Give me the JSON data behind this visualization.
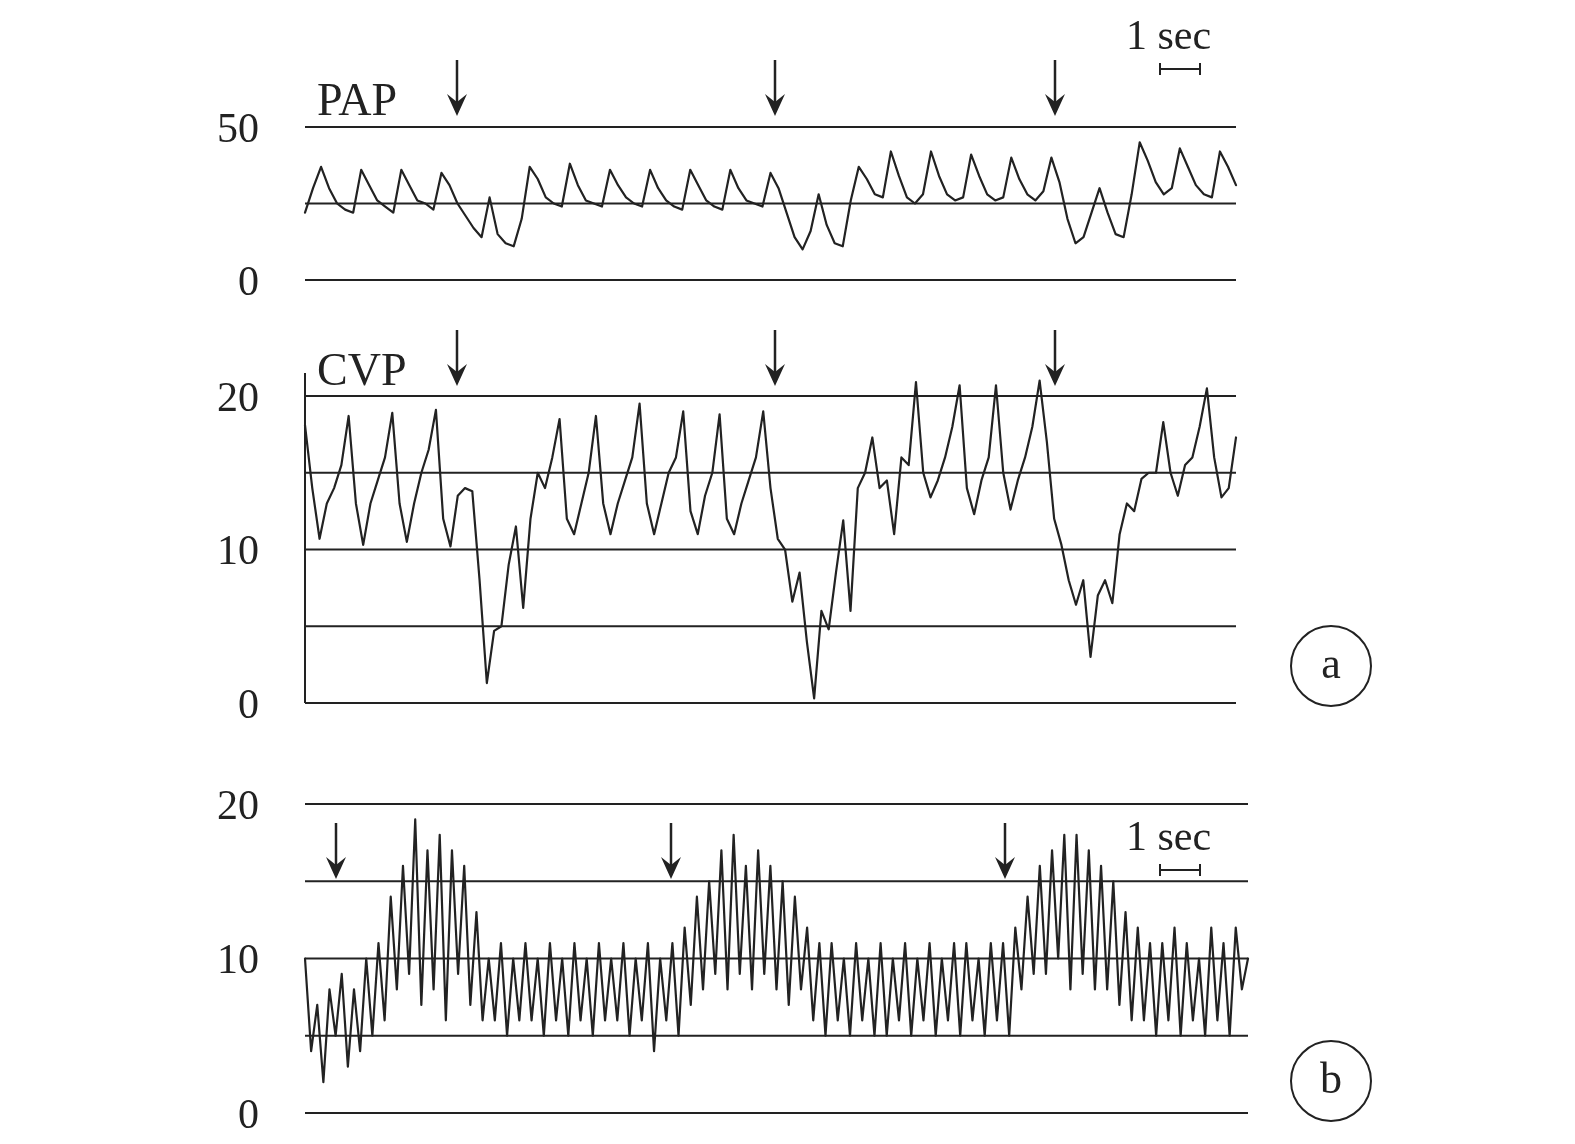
{
  "chart_data": [
    {
      "type": "line",
      "ylim": [
        0,
        50
      ],
      "yticks": [
        0,
        {
          "value": 25,
          "label": null
        },
        50
      ],
      "grid": "y",
      "tick_labels": "y",
      "annotations": [
        "1 sec"
      ],
      "categories": [
        null,
        null,
        null,
        null,
        null,
        null,
        null,
        null,
        null,
        null,
        null,
        null,
        null,
        null,
        null,
        null,
        null,
        null,
        null,
        null,
        null,
        null,
        null,
        null,
        null,
        null,
        null,
        null,
        null,
        null,
        null,
        null,
        null,
        null,
        null,
        null,
        null,
        null,
        null,
        null,
        null,
        null,
        null,
        null,
        null,
        null,
        null,
        null,
        null,
        null,
        null,
        null,
        null,
        null,
        null,
        null,
        null,
        null,
        null,
        null,
        null,
        null,
        null,
        null,
        null,
        null,
        null,
        null,
        null,
        null,
        null,
        null,
        null,
        null,
        null,
        null,
        null,
        null,
        null,
        null,
        null,
        null,
        null,
        null,
        null,
        null,
        null,
        null,
        null,
        null,
        null,
        null,
        null,
        null,
        null,
        null,
        null,
        null,
        null,
        null,
        null,
        null,
        null,
        null,
        null,
        null,
        null,
        null,
        null,
        null,
        null,
        null,
        null,
        null,
        null,
        null,
        null
      ],
      "series": [
        {
          "name": "PAP",
          "color": "#222222",
          "values": [
            22,
            30,
            37,
            30,
            25,
            23,
            22,
            36,
            31,
            26,
            24,
            22,
            36,
            31,
            26,
            25,
            23,
            35,
            31,
            25,
            21,
            17,
            14,
            27,
            15,
            12,
            11,
            20,
            37,
            33,
            27,
            25,
            24,
            38,
            31,
            26,
            25,
            24,
            36,
            31,
            27,
            25,
            24,
            36,
            30,
            26,
            24,
            23,
            36,
            31,
            26,
            24,
            23,
            36,
            30,
            26,
            25,
            24,
            35,
            30,
            22,
            14,
            10,
            16,
            28,
            18,
            12,
            11,
            26,
            37,
            33,
            28,
            27,
            42,
            34,
            27,
            25,
            28,
            42,
            34,
            28,
            26,
            27,
            41,
            34,
            28,
            26,
            27,
            40,
            33,
            28,
            26,
            29,
            40,
            32,
            20,
            12,
            14,
            22,
            30,
            22,
            15,
            14,
            28,
            45,
            39,
            32,
            28,
            30,
            43,
            37,
            31,
            28,
            27,
            42,
            37,
            31
          ]
        }
      ]
    },
    {
      "type": "line",
      "ylim": [
        0,
        21.5
      ],
      "yticks": [
        0,
        {
          "value": 5,
          "label": null
        },
        10,
        {
          "value": 15,
          "label": null
        },
        20
      ],
      "grid": "y",
      "tick_labels": "y",
      "annotations": [
        "a"
      ],
      "categories": [
        null,
        null,
        null,
        null,
        null,
        null,
        null,
        null,
        null,
        null,
        null,
        null,
        null,
        null,
        null,
        null,
        null,
        null,
        null,
        null,
        null,
        null,
        null,
        null,
        null,
        null,
        null,
        null,
        null,
        null,
        null,
        null,
        null,
        null,
        null,
        null,
        null,
        null,
        null,
        null,
        null,
        null,
        null,
        null,
        null,
        null,
        null,
        null,
        null,
        null,
        null,
        null,
        null,
        null,
        null,
        null,
        null,
        null,
        null,
        null,
        null,
        null,
        null,
        null,
        null,
        null,
        null,
        null,
        null,
        null,
        null,
        null,
        null,
        null,
        null,
        null,
        null,
        null,
        null,
        null,
        null,
        null,
        null,
        null,
        null,
        null,
        null,
        null,
        null,
        null,
        null,
        null,
        null,
        null,
        null,
        null,
        null,
        null,
        null,
        null,
        null,
        null,
        null,
        null,
        null,
        null,
        null,
        null,
        null,
        null,
        null,
        null,
        null,
        null,
        null,
        null,
        null,
        null,
        null,
        null,
        null,
        null,
        null,
        null,
        null,
        null,
        null,
        null,
        null
      ],
      "series": [
        {
          "name": "CVP",
          "color": "#222222",
          "values": [
            18.1,
            14,
            10.7,
            13,
            14,
            15.5,
            18.7,
            13,
            10.3,
            13,
            14.5,
            16,
            18.9,
            13,
            10.5,
            13,
            15,
            16.5,
            19.1,
            12,
            10.2,
            13.5,
            14,
            13.8,
            8,
            1.3,
            4.7,
            5,
            9,
            11.5,
            6.2,
            12,
            15,
            14,
            16,
            18.5,
            12,
            11,
            13,
            15,
            18.7,
            13,
            11,
            13,
            14.5,
            16,
            19.5,
            13,
            11,
            13,
            15,
            16,
            19,
            12.5,
            11,
            13.5,
            15,
            18.8,
            12,
            11,
            13,
            14.5,
            16,
            19,
            14,
            10.7,
            10,
            6.6,
            8.5,
            4,
            0.3,
            6,
            4.8,
            8.5,
            11.9,
            6,
            14,
            15,
            17.3,
            14,
            14.5,
            11,
            16,
            15.5,
            20.9,
            15,
            13.4,
            14.5,
            16,
            18,
            20.7,
            14,
            12.3,
            14.5,
            16,
            20.7,
            15,
            12.6,
            14.5,
            16,
            18,
            21,
            17,
            12,
            10.3,
            8,
            6.4,
            8,
            3,
            7,
            8,
            6.5,
            11,
            13,
            12.5,
            14.6,
            15,
            15,
            18.3,
            15,
            13.5,
            15.5,
            16,
            18,
            20.5,
            16,
            13.4,
            14,
            17.3
          ]
        }
      ]
    },
    {
      "type": "line",
      "ylim": [
        0,
        20
      ],
      "yticks": [
        0,
        {
          "value": 5,
          "label": null
        },
        10,
        {
          "value": 15,
          "label": null
        },
        20
      ],
      "grid": "y",
      "tick_labels": "y",
      "annotations": [
        "1 sec",
        "b"
      ],
      "categories": [
        null,
        null,
        null,
        null,
        null,
        null,
        null,
        null,
        null,
        null,
        null,
        null,
        null,
        null,
        null,
        null,
        null,
        null,
        null,
        null,
        null,
        null,
        null,
        null,
        null,
        null,
        null,
        null,
        null,
        null,
        null,
        null,
        null,
        null,
        null,
        null,
        null,
        null,
        null,
        null,
        null,
        null,
        null,
        null,
        null,
        null,
        null,
        null,
        null,
        null,
        null,
        null,
        null,
        null,
        null,
        null,
        null,
        null,
        null,
        null,
        null,
        null,
        null,
        null,
        null,
        null,
        null,
        null,
        null,
        null,
        null,
        null,
        null,
        null,
        null,
        null,
        null,
        null,
        null,
        null,
        null,
        null,
        null,
        null,
        null,
        null,
        null,
        null,
        null,
        null,
        null,
        null,
        null,
        null,
        null,
        null,
        null,
        null,
        null,
        null,
        null,
        null,
        null,
        null,
        null,
        null,
        null,
        null,
        null,
        null,
        null,
        null,
        null,
        null,
        null,
        null,
        null,
        null,
        null,
        null,
        null,
        null,
        null,
        null,
        null,
        null,
        null,
        null,
        null,
        null,
        null,
        null,
        null,
        null,
        null,
        null,
        null,
        null,
        null,
        null,
        null,
        null,
        null,
        null,
        null,
        null,
        null,
        null,
        null,
        null,
        null,
        null,
        null,
        null,
        null
      ],
      "series": [
        {
          "color": "#222222",
          "values": [
            10,
            4,
            7,
            2,
            8,
            5,
            9,
            3,
            8,
            4,
            10,
            5,
            11,
            6,
            14,
            8,
            16,
            9,
            19,
            7,
            17,
            8,
            18,
            6,
            17,
            9,
            16,
            7,
            13,
            6,
            10,
            6,
            11,
            5,
            10,
            6,
            11,
            6,
            10,
            5,
            11,
            6,
            10,
            5,
            11,
            6,
            10,
            5,
            11,
            6,
            10,
            6,
            11,
            5,
            10,
            6,
            11,
            4,
            10,
            6,
            11,
            5,
            12,
            7,
            14,
            8,
            15,
            9,
            17,
            8,
            18,
            9,
            16,
            8,
            17,
            9,
            16,
            8,
            15,
            7,
            14,
            8,
            12,
            6,
            11,
            5,
            11,
            6,
            10,
            5,
            11,
            6,
            10,
            5,
            11,
            5,
            10,
            6,
            11,
            5,
            10,
            6,
            11,
            5,
            10,
            6,
            11,
            5,
            11,
            6,
            10,
            5,
            11,
            6,
            11,
            5,
            12,
            8,
            14,
            9,
            16,
            9,
            17,
            10,
            18,
            8,
            18,
            9,
            17,
            8,
            16,
            8,
            15,
            7,
            13,
            6,
            12,
            6,
            11,
            5,
            11,
            6,
            12,
            5,
            11,
            6,
            10,
            5,
            12,
            6,
            11,
            5,
            12,
            8,
            10
          ]
        }
      ]
    }
  ]
}
